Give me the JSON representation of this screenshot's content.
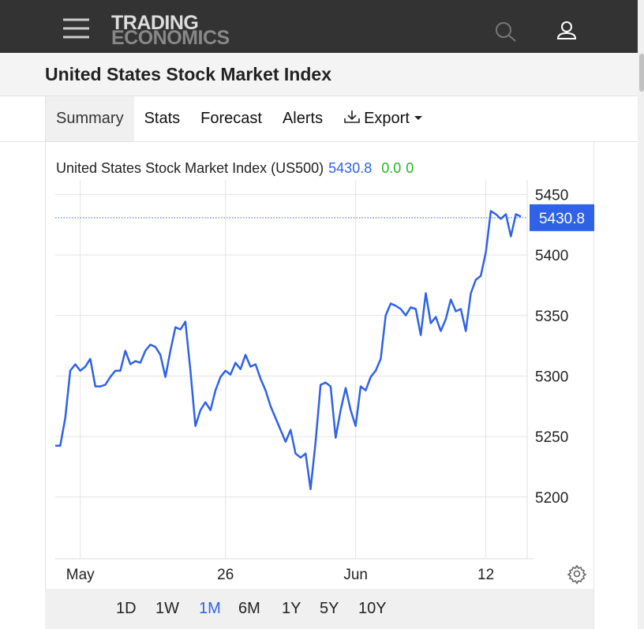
{
  "header": {
    "logo": [
      "TRADING",
      "ECONOMICS"
    ]
  },
  "title": "United States Stock Market Index",
  "tabs": [
    "Summary",
    "Stats",
    "Forecast",
    "Alerts",
    "Export"
  ],
  "active_tab": "Summary",
  "chart": {
    "type": "line",
    "title": "United States Stock Market Index (US500)",
    "last": 5430.8,
    "change": "0.0",
    "change_percent": "0",
    "color": "#2f62e8",
    "grid": true,
    "ylim": [
      5149,
      5462
    ],
    "yticks": [
      5200,
      5250,
      5300,
      5350,
      5400,
      5450
    ],
    "xlim": [
      0,
      93
    ],
    "xticks": [
      {
        "value": 5,
        "label": "May"
      },
      {
        "value": 34,
        "label": "26"
      },
      {
        "value": 60,
        "label": "Jun"
      },
      {
        "value": 86,
        "label": "12"
      }
    ],
    "values": [
      5242.4,
      5242.4,
      5265.3,
      5304.4,
      5309.7,
      5304.4,
      5307.7,
      5314.2,
      5291.4,
      5291.4,
      5292.7,
      5299.2,
      5304.4,
      5304.4,
      5320.8,
      5309.7,
      5312.3,
      5311,
      5320.8,
      5326,
      5324,
      5317.5,
      5299.2,
      5320.8,
      5340.3,
      5338.4,
      5344.9,
      5304.4,
      5258.7,
      5271.8,
      5278.3,
      5271.8,
      5288.1,
      5299.2,
      5304.4,
      5301.2,
      5311,
      5305.7,
      5317.5,
      5307.7,
      5309.7,
      5297.9,
      5288.1,
      5275.1,
      5265.3,
      5255.5,
      5245.7,
      5255.5,
      5235.9,
      5232.6,
      5235.9,
      5206.5,
      5245.7,
      5292.7,
      5294.6,
      5291.4,
      5249,
      5271.8,
      5290.1,
      5271.8,
      5258.7,
      5291.4,
      5288.1,
      5299.2,
      5304.4,
      5314.2,
      5350.1,
      5359.9,
      5358,
      5355.4,
      5350.1,
      5356.7,
      5355.4,
      5333.8,
      5368.4,
      5343.6,
      5348.8,
      5337.1,
      5346.9,
      5363.2,
      5353.4,
      5355.4,
      5337.1,
      5368.4,
      5379.5,
      5382.8,
      5402.3,
      5436.3,
      5433.7,
      5429.8,
      5433.7,
      5415.4,
      5433.7,
      5431.7
    ]
  },
  "ranges": [
    "1D",
    "1W",
    "1M",
    "6M",
    "1Y",
    "5Y",
    "10Y"
  ],
  "active_range": "1M"
}
